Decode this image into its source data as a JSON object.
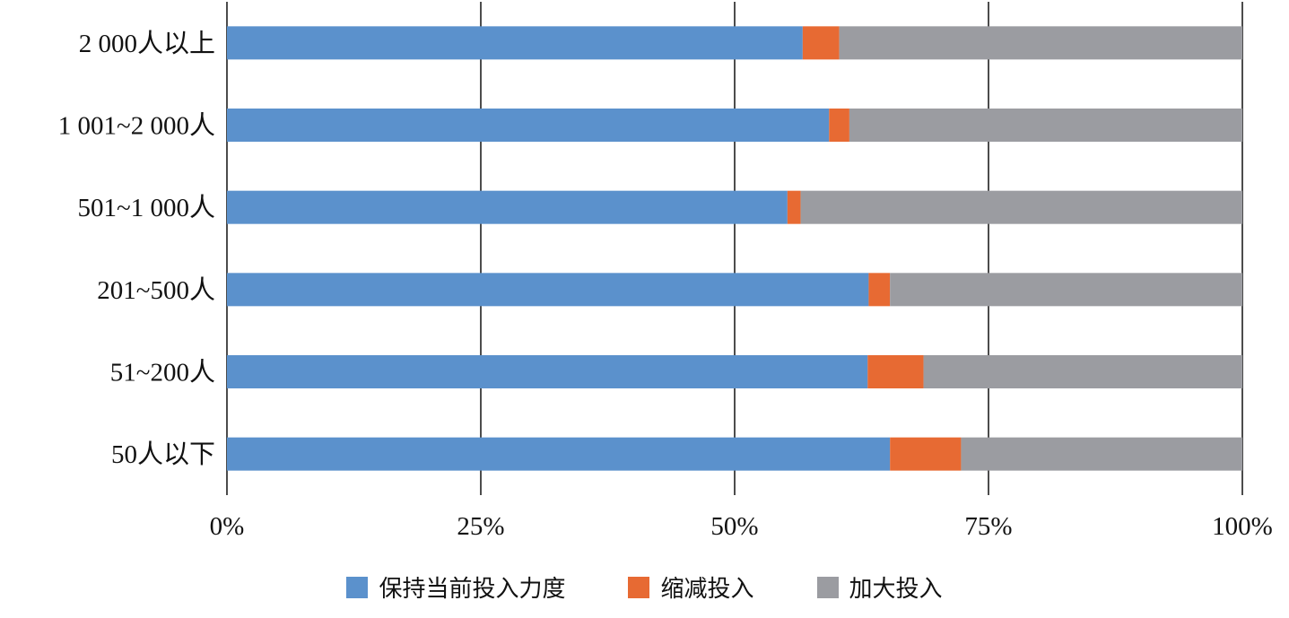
{
  "chart_data": {
    "type": "bar",
    "orientation": "horizontal",
    "stacked": true,
    "percent_stacked": true,
    "categories": [
      "2 000人以上",
      "1 001~2 000人",
      "501~1 000人",
      "201~500人",
      "51~200人",
      "50人以下"
    ],
    "series": [
      {
        "name": "保持当前投入力度",
        "color": "#5b91cc",
        "values": [
          56.7,
          59.3,
          55.2,
          63.2,
          63.1,
          65.3
        ]
      },
      {
        "name": "缩减投入",
        "color": "#e76a33",
        "values": [
          3.6,
          2.0,
          1.3,
          2.1,
          5.5,
          7.0
        ]
      },
      {
        "name": "加大投入",
        "color": "#9b9ca1",
        "values": [
          39.7,
          38.7,
          43.5,
          34.7,
          31.4,
          27.7
        ]
      }
    ],
    "x_ticks": [
      "0%",
      "25%",
      "50%",
      "75%",
      "100%"
    ],
    "xlim": [
      0,
      100
    ],
    "grid": true,
    "legend_position": "bottom",
    "title": "",
    "xlabel": "",
    "ylabel": ""
  }
}
